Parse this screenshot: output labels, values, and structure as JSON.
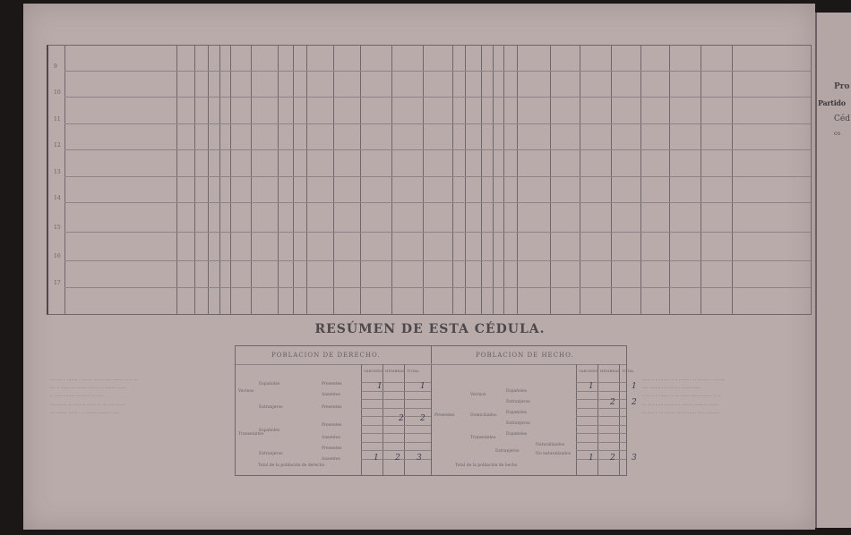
{
  "document": {
    "row_numbers": [
      "9",
      "10",
      "11",
      "12",
      "13",
      "14",
      "15",
      "16",
      "17"
    ],
    "summary": {
      "title": "RESÚMEN DE ESTA CÉDULA.",
      "derecho": {
        "heading": "POBLACION DE DERECHO.",
        "columns": [
          "VARONES",
          "HEMBRAS",
          "TOTAL"
        ],
        "labels": [
          "Vecinos",
          "Españoles",
          "Extranjeros",
          "Presentes",
          "Ausentes",
          "Presentes",
          "Ausentes",
          "Transeúntes",
          "Españoles",
          "Extranjeros",
          "Presentes",
          "Ausentes",
          "Presentes",
          "Ausentes"
        ],
        "total_label": "Total de la población de derecho",
        "entries": {
          "vecinos_presentes_varones": "1",
          "vecinos_presentes_total": "1",
          "transeuntes_presentes_hembras": "2",
          "transeuntes_presentes_total": "2"
        },
        "totals": [
          "1",
          "2",
          "3"
        ]
      },
      "hecho": {
        "heading": "POBLACION DE HECHO.",
        "columns": [
          "VARONES",
          "HEMBRAS",
          "TOTAL"
        ],
        "labels": [
          "Presentes",
          "Vecinos",
          "Españoles",
          "Extranjeros",
          "Domiciliados",
          "Españoles",
          "Extranjeros",
          "Transeúntes",
          "Españoles",
          "Extranjeros",
          "Naturalizados",
          "No naturalizados"
        ],
        "total_label": "Total de la población de hecho",
        "entries": {
          "vecinos_varones": "1",
          "vecinos_total": "1",
          "domiciliados_hembras": "2",
          "domiciliados_total": "2"
        },
        "totals": [
          "1",
          "2",
          "3"
        ]
      }
    },
    "right_page": [
      "Pro",
      "Partido",
      "Céd",
      "co"
    ]
  }
}
